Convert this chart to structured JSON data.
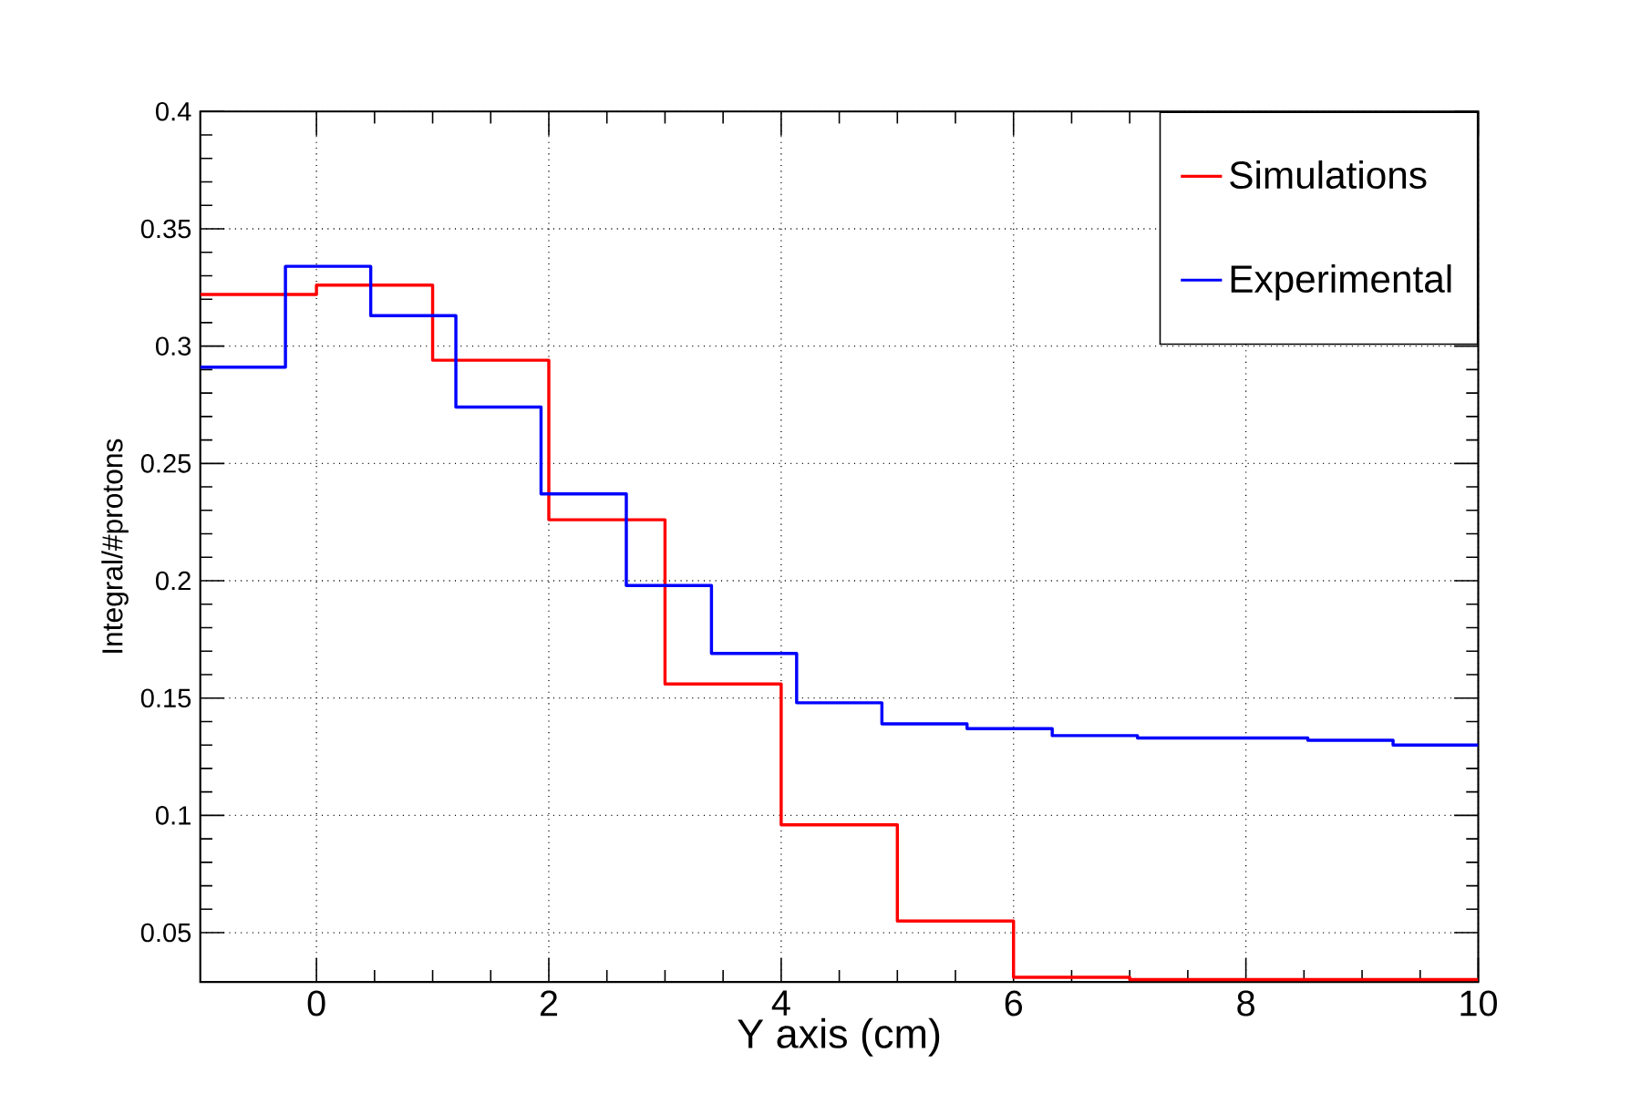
{
  "chart_data": {
    "type": "step",
    "xlabel": "Y axis (cm)",
    "ylabel": "Integral/#protons",
    "xlim": [
      -1,
      10
    ],
    "ylim": [
      0.029,
      0.4
    ],
    "xticks": [
      0,
      2,
      4,
      6,
      8,
      10
    ],
    "yticks": [
      0.05,
      0.1,
      0.15,
      0.2,
      0.25,
      0.3,
      0.35,
      0.4
    ],
    "grid": true,
    "legend": "top right",
    "line_style": "solid",
    "marker": "none",
    "series": [
      {
        "name": "Simulations",
        "color": "#ff0000",
        "x": [
          -1,
          0,
          1,
          2,
          3,
          4,
          5,
          6,
          7,
          8,
          9,
          10
        ],
        "values": [
          0.322,
          0.326,
          0.294,
          0.226,
          0.156,
          0.096,
          0.055,
          0.031,
          0.03,
          0.03,
          0.03,
          0.03
        ]
      },
      {
        "name": "Experimental",
        "color": "#0000ff",
        "x": [
          -1,
          -0.267,
          0.467,
          1.2,
          1.933,
          2.667,
          3.4,
          4.133,
          4.867,
          5.6,
          6.333,
          7.067,
          7.8,
          8.533,
          9.267,
          10
        ],
        "values": [
          0.291,
          0.334,
          0.313,
          0.274,
          0.237,
          0.198,
          0.169,
          0.148,
          0.139,
          0.137,
          0.134,
          0.133,
          0.133,
          0.132,
          0.13,
          0.13
        ]
      }
    ]
  }
}
